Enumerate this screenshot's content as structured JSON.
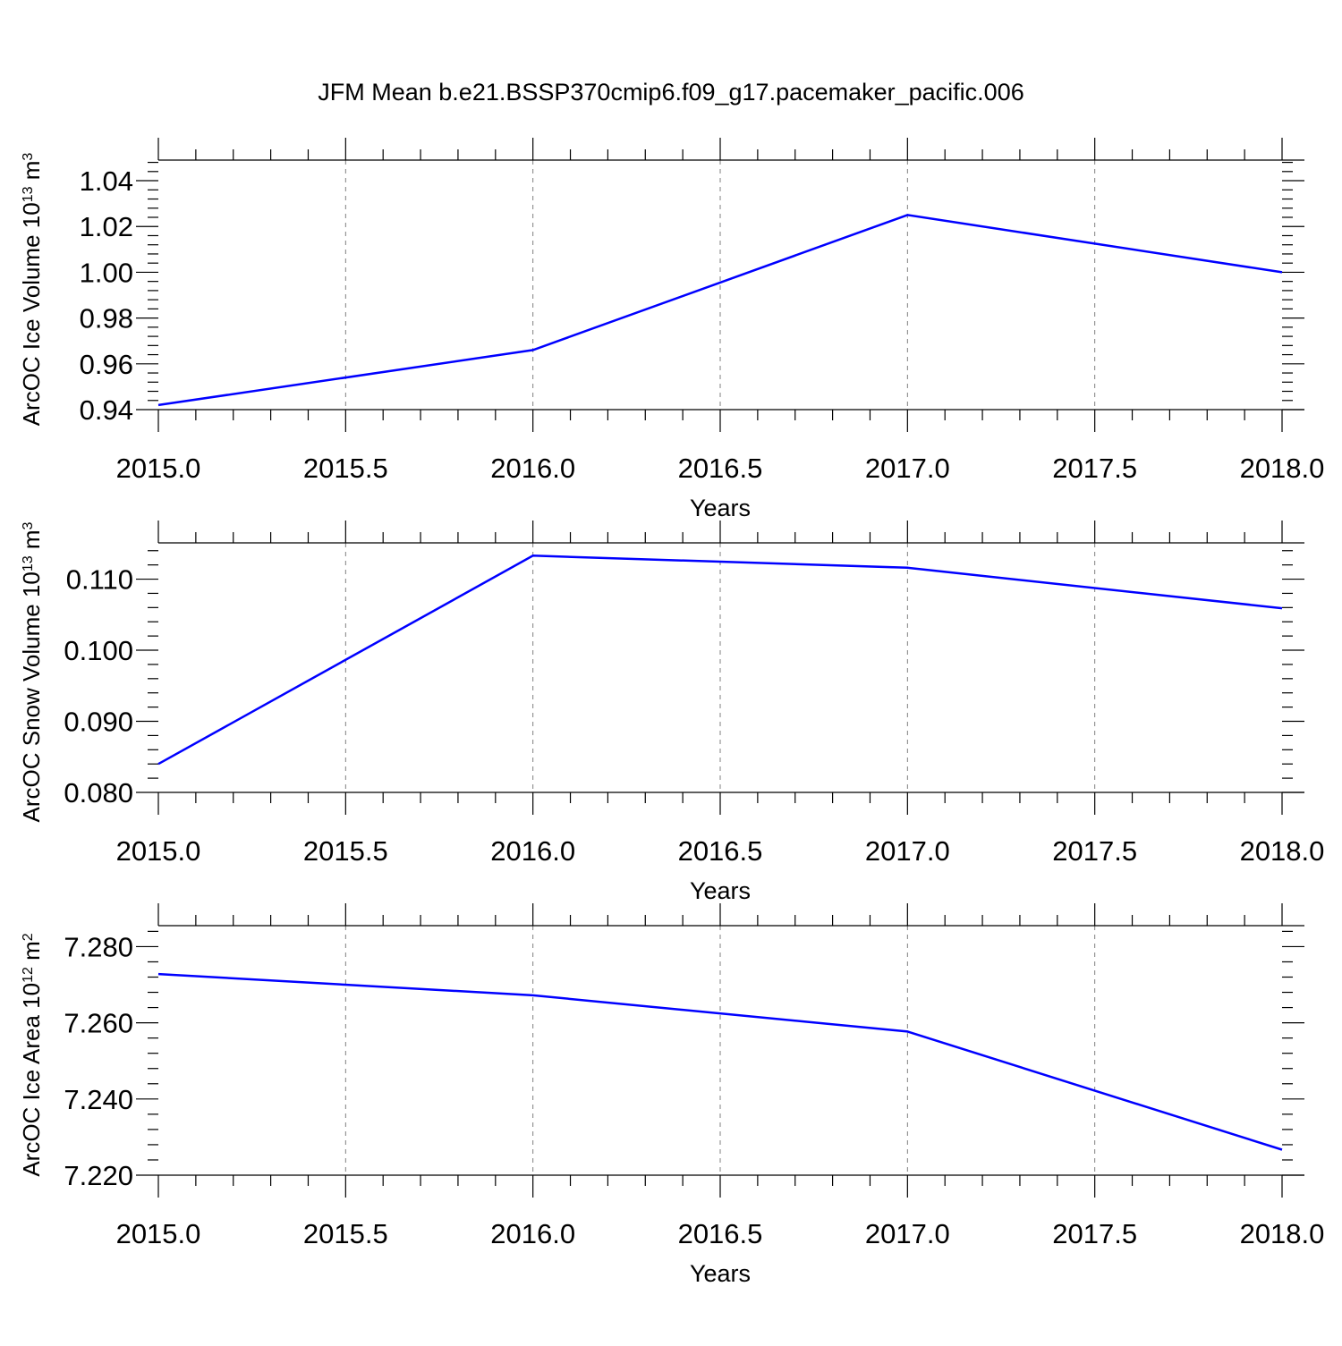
{
  "title": "JFM Mean b.e21.BSSP370cmip6.f09_g17.pacemaker_pacific.006",
  "line_color": "#0000ff",
  "grid_color": "#7f7f7f",
  "chart_data": [
    {
      "type": "line",
      "ylabel": "ArcOC Ice Volume 10",
      "ylabel_exp": "13",
      "ylabel_unit": "m",
      "ylabel_unit_exp": "3",
      "xlabel": "Years",
      "xlim": [
        2015.0,
        2018.0
      ],
      "ylim": [
        0.94,
        1.049
      ],
      "xticks": [
        "2015.0",
        "2015.5",
        "2016.0",
        "2016.5",
        "2017.0",
        "2017.5",
        "2018.0"
      ],
      "yticks": [
        "0.94",
        "0.96",
        "0.98",
        "1.00",
        "1.02",
        "1.04"
      ],
      "grid": "vertical dashed",
      "series": [
        {
          "x": [
            2015,
            2016,
            2017,
            2018
          ],
          "values": [
            0.942,
            0.966,
            1.025,
            1.0
          ]
        }
      ]
    },
    {
      "type": "line",
      "ylabel": "ArcOC Snow Volume 10",
      "ylabel_exp": "13",
      "ylabel_unit": "m",
      "ylabel_unit_exp": "3",
      "xlabel": "Years",
      "xlim": [
        2015.0,
        2018.0
      ],
      "ylim": [
        0.08,
        0.1151
      ],
      "xticks": [
        "2015.0",
        "2015.5",
        "2016.0",
        "2016.5",
        "2017.0",
        "2017.5",
        "2018.0"
      ],
      "yticks": [
        "0.080",
        "0.090",
        "0.100",
        "0.110"
      ],
      "grid": "vertical dashed",
      "series": [
        {
          "x": [
            2015,
            2016,
            2017,
            2018
          ],
          "values": [
            0.084,
            0.1133,
            0.1116,
            0.1059
          ]
        }
      ]
    },
    {
      "type": "line",
      "ylabel": "ArcOC Ice Area 10",
      "ylabel_exp": "12",
      "ylabel_unit": "m",
      "ylabel_unit_exp": "2",
      "xlabel": "Years",
      "xlim": [
        2015.0,
        2018.0
      ],
      "ylim": [
        7.22,
        7.2855
      ],
      "xticks": [
        "2015.0",
        "2015.5",
        "2016.0",
        "2016.5",
        "2017.0",
        "2017.5",
        "2018.0"
      ],
      "yticks": [
        "7.220",
        "7.240",
        "7.260",
        "7.280"
      ],
      "grid": "vertical dashed",
      "series": [
        {
          "x": [
            2015,
            2016,
            2017,
            2018
          ],
          "values": [
            7.2728,
            7.2672,
            7.2577,
            7.2267
          ]
        }
      ]
    }
  ]
}
